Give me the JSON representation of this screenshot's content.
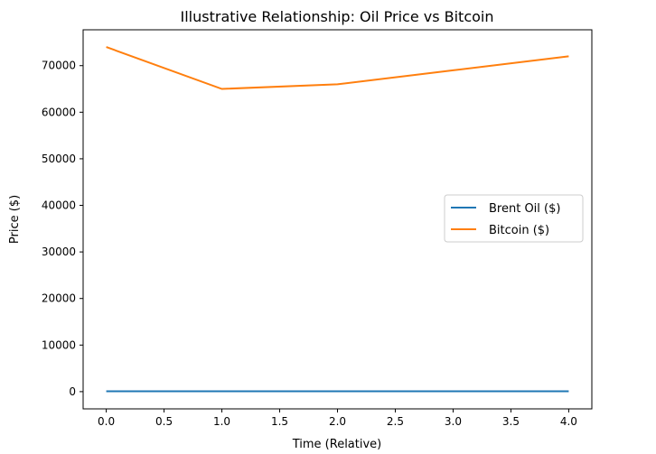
{
  "chart_data": {
    "type": "line",
    "title": "Illustrative Relationship: Oil Price vs Bitcoin",
    "xlabel": "Time (Relative)",
    "ylabel": "Price ($)",
    "x": [
      0,
      1,
      2,
      3,
      4
    ],
    "xlim": [
      -0.2,
      4.2
    ],
    "ylim": [
      -3700,
      77700
    ],
    "xticks": [
      "0.0",
      "0.5",
      "1.0",
      "1.5",
      "2.0",
      "2.5",
      "3.0",
      "3.5",
      "4.0"
    ],
    "yticks": [
      "0",
      "10000",
      "20000",
      "30000",
      "40000",
      "50000",
      "60000",
      "70000"
    ],
    "series": [
      {
        "name": "Brent Oil ($)",
        "color": "#1f77b4",
        "values": [
          82,
          85,
          88,
          84,
          80
        ]
      },
      {
        "name": "Bitcoin ($)",
        "color": "#ff7f0e",
        "values": [
          74000,
          65000,
          66000,
          69000,
          72000
        ]
      }
    ],
    "legend": "center-right",
    "grid": false
  }
}
